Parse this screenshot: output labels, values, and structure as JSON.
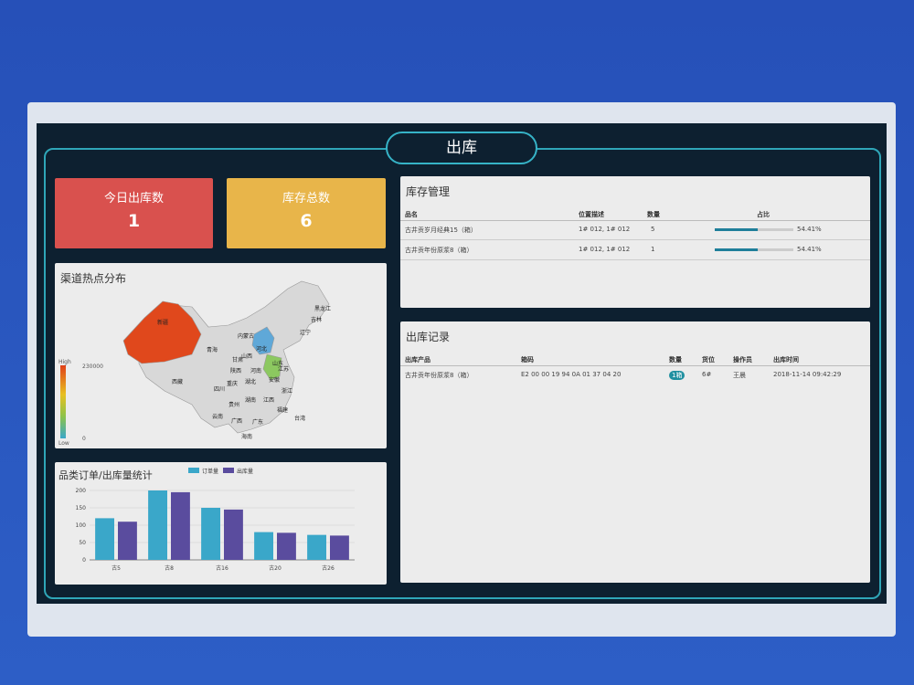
{
  "header": {
    "title": "出库"
  },
  "cards": [
    {
      "label": "今日出库数",
      "value": 1
    },
    {
      "label": "库存总数",
      "value": 6
    }
  ],
  "inventory": {
    "title": "库存管理",
    "columns": [
      "品名",
      "位置描述",
      "数量",
      "占比"
    ],
    "rows": [
      {
        "name": "古井贡岁月经典15（箱）",
        "location": "1# 012, 1# 012",
        "quantity": 5,
        "share": {
          "value": 54.41,
          "label": "54.41%"
        }
      },
      {
        "name": "古井贡年份原浆8（箱）",
        "location": "1# 012, 1# 012",
        "quantity": 1,
        "share": {
          "value": 54.41,
          "label": "54.41%"
        }
      }
    ]
  },
  "records": {
    "title": "出库记录",
    "columns": [
      "出库产品",
      "箱码",
      "数量",
      "货位",
      "操作员",
      "出库时间"
    ],
    "rows": [
      {
        "product": "古井贡年份原浆8（箱）",
        "code": "E2 00 00 19 94 0A 01 37 04 20",
        "quantity": "1箱",
        "slot": "6#",
        "operator": "王晨",
        "time": "2018-11-14 09:42:29"
      }
    ]
  },
  "map": {
    "title": "渠道热点分布",
    "regions": [
      "新疆",
      "西藏",
      "青海",
      "甘肃",
      "内蒙古",
      "黑龙江",
      "吉林",
      "辽宁",
      "河北",
      "山东",
      "山西",
      "陕西",
      "四川",
      "重庆",
      "湖北",
      "河南",
      "安徽",
      "江苏",
      "浙江",
      "江西",
      "湖南",
      "贵州",
      "云南",
      "广西",
      "广东",
      "福建",
      "台湾",
      "海南"
    ],
    "visual_map": {
      "high": "High",
      "low": "Low",
      "max": 230000,
      "min": 0
    }
  },
  "chart_data": {
    "type": "bar",
    "title": "品类订单/出库量统计",
    "categories": [
      "古5",
      "古8",
      "古16",
      "古20",
      "古26"
    ],
    "series": [
      {
        "name": "订单量",
        "color": "#3aa7c9",
        "values": [
          120,
          200,
          150,
          80,
          72
        ]
      },
      {
        "name": "出库量",
        "color": "#5a4c9e",
        "values": [
          110,
          195,
          145,
          78,
          70
        ]
      }
    ],
    "ylim": [
      0,
      200
    ],
    "yticks": [
      0,
      50,
      100,
      150,
      200
    ],
    "grid": true,
    "legend": "top"
  }
}
